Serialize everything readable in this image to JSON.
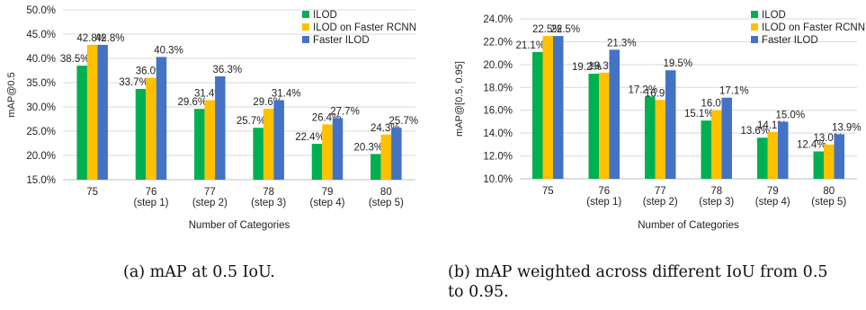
{
  "colors": {
    "ILOD": "#00b050",
    "ILOD on Faster RCNN": "#ffc000",
    "Faster ILOD": "#4472c4",
    "grid": "#d9d9d9",
    "axis": "#bfbfbf"
  },
  "captions": {
    "a": "(a) mAP at 0.5 IoU.",
    "b_line1": "(b) mAP weighted across different IoU from 0.5",
    "b_line2": "to 0.95."
  },
  "chart_data": [
    {
      "type": "bar",
      "title": "",
      "xlabel": "Number of Categories",
      "ylabel": "mAP@0.5",
      "categories": [
        [
          "75"
        ],
        [
          "76",
          "(step 1)"
        ],
        [
          "77",
          "(step 2)"
        ],
        [
          "78",
          "(step 3)"
        ],
        [
          "79",
          "(step 4)"
        ],
        [
          "80",
          "(step 5)"
        ]
      ],
      "ylim": [
        15,
        50
      ],
      "yticks": [
        "15.0%",
        "20.0%",
        "25.0%",
        "30.0%",
        "35.0%",
        "40.0%",
        "45.0%",
        "50.0%"
      ],
      "ytick_values": [
        15,
        20,
        25,
        30,
        35,
        40,
        45,
        50
      ],
      "grid": true,
      "legend_position": "top-right",
      "series": [
        {
          "name": "ILOD",
          "values": [
            38.5,
            33.7,
            29.6,
            25.7,
            22.4,
            20.3
          ],
          "labels": [
            "38.5%",
            "33.7%",
            "29.6%",
            "25.7%",
            "22.4%",
            "20.3%"
          ]
        },
        {
          "name": "ILOD on Faster RCNN",
          "values": [
            42.8,
            36.0,
            31.4,
            29.6,
            26.4,
            24.3
          ],
          "labels": [
            "42.8%",
            "36.0%",
            "31.4%",
            "29.6%",
            "26.4%",
            "24.3%"
          ]
        },
        {
          "name": "Faster ILOD",
          "values": [
            42.8,
            40.3,
            36.3,
            31.4,
            27.7,
            25.7
          ],
          "labels": [
            "42.8%",
            "40.3%",
            "36.3%",
            "31.4%",
            "27.7%",
            "25.7%"
          ]
        }
      ]
    },
    {
      "type": "bar",
      "title": "",
      "xlabel": "Number of Categories",
      "ylabel": "mAP@[0.5, 0.95]",
      "categories": [
        [
          "75"
        ],
        [
          "76",
          "(step 1)"
        ],
        [
          "77",
          "(step 2)"
        ],
        [
          "78",
          "(step 3)"
        ],
        [
          "79",
          "(step 4)"
        ],
        [
          "80",
          "(step 5)"
        ]
      ],
      "ylim": [
        10,
        24
      ],
      "yticks": [
        "10.0%",
        "12.0%",
        "14.0%",
        "16.0%",
        "18.0%",
        "20.0%",
        "22.0%",
        "24.0%"
      ],
      "ytick_values": [
        10,
        12,
        14,
        16,
        18,
        20,
        22,
        24
      ],
      "grid": true,
      "legend_position": "top-right",
      "series": [
        {
          "name": "ILOD",
          "values": [
            21.1,
            19.2,
            17.2,
            15.1,
            13.6,
            12.4
          ],
          "labels": [
            "21.1%",
            "19.2%",
            "17.2%",
            "15.1%",
            "13.6%",
            "12.4%"
          ]
        },
        {
          "name": "ILOD on Faster RCNN",
          "values": [
            22.5,
            19.3,
            16.9,
            16.0,
            14.1,
            13.0
          ],
          "labels": [
            "22.5%",
            "19.3%",
            "16.9%",
            "16.0%",
            "14.1%",
            "13.0%"
          ]
        },
        {
          "name": "Faster ILOD",
          "values": [
            22.5,
            21.3,
            19.5,
            17.1,
            15.0,
            13.9
          ],
          "labels": [
            "22.5%",
            "21.3%",
            "19.5%",
            "17.1%",
            "15.0%",
            "13.9%"
          ]
        }
      ]
    }
  ]
}
